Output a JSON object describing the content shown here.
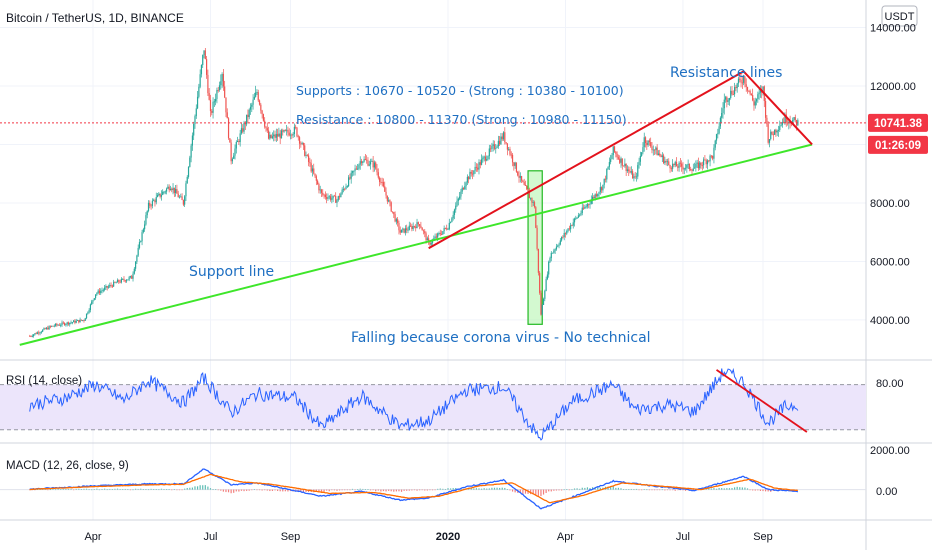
{
  "header": {
    "title": "Bitcoin / TetherUS, 1D, BINANCE",
    "currency": "USDT"
  },
  "chart_data": {
    "type": "candlestick",
    "x_tick_labels": [
      "Apr",
      "Jul",
      "Sep",
      "2020",
      "Apr",
      "Jul",
      "Sep"
    ],
    "x_tick_dates": [
      "2019-04-01",
      "2019-07-01",
      "2019-09-01",
      "2020-01-01",
      "2020-04-01",
      "2020-07-01",
      "2020-09-01"
    ],
    "price_axis": {
      "ticks": [
        4000,
        6000,
        8000,
        10000,
        12000,
        14000
      ],
      "tick_labels": [
        "4000.00",
        "6000.00",
        "8000.00",
        "10000.00",
        "12000.00",
        "14000.00"
      ],
      "ylim": [
        2800,
        14600
      ]
    },
    "last_price": {
      "value": 10741.38,
      "label": "10741.38",
      "countdown": "01:26:09"
    },
    "price_series": [
      [
        "2019-02-11",
        3450
      ],
      [
        "2019-03-01",
        3800
      ],
      [
        "2019-03-25",
        4000
      ],
      [
        "2019-04-03",
        4900
      ],
      [
        "2019-04-20",
        5300
      ],
      [
        "2019-05-01",
        5450
      ],
      [
        "2019-05-14",
        7900
      ],
      [
        "2019-05-31",
        8600
      ],
      [
        "2019-06-10",
        8000
      ],
      [
        "2019-06-26",
        13300
      ],
      [
        "2019-07-01",
        11000
      ],
      [
        "2019-07-10",
        12500
      ],
      [
        "2019-07-17",
        9500
      ],
      [
        "2019-08-06",
        11800
      ],
      [
        "2019-08-15",
        10200
      ],
      [
        "2019-09-05",
        10500
      ],
      [
        "2019-09-25",
        8300
      ],
      [
        "2019-10-07",
        8100
      ],
      [
        "2019-10-26",
        9500
      ],
      [
        "2019-11-05",
        9300
      ],
      [
        "2019-11-25",
        7000
      ],
      [
        "2019-12-10",
        7300
      ],
      [
        "2019-12-17",
        6600
      ],
      [
        "2020-01-01",
        7200
      ],
      [
        "2020-01-15",
        8800
      ],
      [
        "2020-02-13",
        10300
      ],
      [
        "2020-02-26",
        8800
      ],
      [
        "2020-03-08",
        7900
      ],
      [
        "2020-03-12",
        4900
      ],
      [
        "2020-03-13",
        4200
      ],
      [
        "2020-03-20",
        6200
      ],
      [
        "2020-04-06",
        7300
      ],
      [
        "2020-04-30",
        8600
      ],
      [
        "2020-05-08",
        9800
      ],
      [
        "2020-05-25",
        8800
      ],
      [
        "2020-06-01",
        10200
      ],
      [
        "2020-06-20",
        9300
      ],
      [
        "2020-07-10",
        9200
      ],
      [
        "2020-07-24",
        9600
      ],
      [
        "2020-08-02",
        11500
      ],
      [
        "2020-08-17",
        12300
      ],
      [
        "2020-08-25",
        11400
      ],
      [
        "2020-09-01",
        11900
      ],
      [
        "2020-09-05",
        10200
      ],
      [
        "2020-09-18",
        10900
      ],
      [
        "2020-09-28",
        10741.38
      ]
    ],
    "support_line": {
      "label": "Support line",
      "from": [
        "2019-02-11",
        3250
      ],
      "to": [
        "2020-10-09",
        10000
      ]
    },
    "resistance_lines": {
      "label": "Resistance lines",
      "lower": {
        "from": [
          "2019-12-17",
          6450
        ],
        "to": [
          "2020-08-17",
          12500
        ]
      },
      "upper": {
        "from": [
          "2020-08-17",
          12500
        ],
        "to": [
          "2020-10-09",
          10000
        ]
      }
    },
    "corona_box": {
      "from": [
        "2020-03-03",
        9100
      ],
      "to": [
        "2020-03-14",
        3850
      ]
    },
    "annotations": {
      "supports": "Supports : 10670 - 10520 - (Strong : 10380 - 10100)",
      "resistance": "Resistance : 10800 - 11370 (Strong : 10980 - 11150)",
      "corona": "Falling because corona virus - No technical"
    },
    "rsi": {
      "title": "RSI (14, close)",
      "tick_label": "80.00",
      "upper_band": 70,
      "lower_band": 30,
      "ylim": [
        20,
        90
      ],
      "series": [
        [
          "2019-02-11",
          52
        ],
        [
          "2019-03-10",
          58
        ],
        [
          "2019-04-03",
          70
        ],
        [
          "2019-04-25",
          56
        ],
        [
          "2019-05-14",
          74
        ],
        [
          "2019-06-10",
          54
        ],
        [
          "2019-06-26",
          76
        ],
        [
          "2019-07-17",
          45
        ],
        [
          "2019-08-06",
          62
        ],
        [
          "2019-09-05",
          58
        ],
        [
          "2019-09-25",
          32
        ],
        [
          "2019-10-26",
          60
        ],
        [
          "2019-11-25",
          33
        ],
        [
          "2019-12-17",
          38
        ],
        [
          "2020-01-15",
          65
        ],
        [
          "2020-02-13",
          68
        ],
        [
          "2020-03-12",
          22
        ],
        [
          "2020-04-06",
          55
        ],
        [
          "2020-05-08",
          70
        ],
        [
          "2020-05-25",
          48
        ],
        [
          "2020-06-20",
          52
        ],
        [
          "2020-07-10",
          46
        ],
        [
          "2020-08-02",
          82
        ],
        [
          "2020-08-17",
          72
        ],
        [
          "2020-09-05",
          36
        ],
        [
          "2020-09-18",
          50
        ],
        [
          "2020-09-28",
          53
        ]
      ],
      "trend_line": {
        "from": [
          "2020-07-27",
          83
        ],
        "to": [
          "2020-10-05",
          28
        ]
      }
    },
    "macd": {
      "title": "MACD (12, 26, close, 9)",
      "tick_labels": [
        "2000.00",
        "0.00"
      ],
      "ylim": [
        -1500,
        2300
      ],
      "macd_series": [
        [
          "2019-02-11",
          20
        ],
        [
          "2019-04-03",
          200
        ],
        [
          "2019-05-14",
          300
        ],
        [
          "2019-06-10",
          300
        ],
        [
          "2019-06-26",
          1100
        ],
        [
          "2019-07-17",
          250
        ],
        [
          "2019-08-06",
          350
        ],
        [
          "2019-09-25",
          -350
        ],
        [
          "2019-10-26",
          -100
        ],
        [
          "2019-11-25",
          -550
        ],
        [
          "2019-12-17",
          -450
        ],
        [
          "2020-01-15",
          150
        ],
        [
          "2020-02-13",
          500
        ],
        [
          "2020-03-13",
          -1000
        ],
        [
          "2020-04-06",
          -400
        ],
        [
          "2020-05-08",
          450
        ],
        [
          "2020-06-20",
          100
        ],
        [
          "2020-07-10",
          -50
        ],
        [
          "2020-08-17",
          700
        ],
        [
          "2020-09-05",
          0
        ],
        [
          "2020-09-28",
          -100
        ]
      ],
      "signal_series": [
        [
          "2019-02-11",
          10
        ],
        [
          "2019-04-03",
          160
        ],
        [
          "2019-05-14",
          250
        ],
        [
          "2019-06-10",
          280
        ],
        [
          "2019-07-01",
          800
        ],
        [
          "2019-07-25",
          400
        ],
        [
          "2019-08-15",
          300
        ],
        [
          "2019-10-01",
          -200
        ],
        [
          "2019-11-05",
          -150
        ],
        [
          "2019-12-01",
          -450
        ],
        [
          "2019-12-25",
          -350
        ],
        [
          "2020-01-25",
          200
        ],
        [
          "2020-02-20",
          350
        ],
        [
          "2020-03-20",
          -700
        ],
        [
          "2020-04-15",
          -300
        ],
        [
          "2020-05-15",
          350
        ],
        [
          "2020-06-25",
          120
        ],
        [
          "2020-07-15",
          0
        ],
        [
          "2020-08-22",
          550
        ],
        [
          "2020-09-10",
          80
        ],
        [
          "2020-09-28",
          -50
        ]
      ]
    },
    "colors": {
      "up": "#26a69a",
      "down": "#ef5350",
      "support": "#3ee62a",
      "resistance": "#e3121c",
      "annotation": "#1e6fc2",
      "rsi": "#2962ff",
      "rsi_band": "#ece5fb",
      "macd": "#2962ff",
      "signal": "#ff6d00",
      "last_price": "#f23645",
      "corona_box_fill": "#b6f5b0",
      "corona_box_stroke": "#22b922"
    }
  }
}
